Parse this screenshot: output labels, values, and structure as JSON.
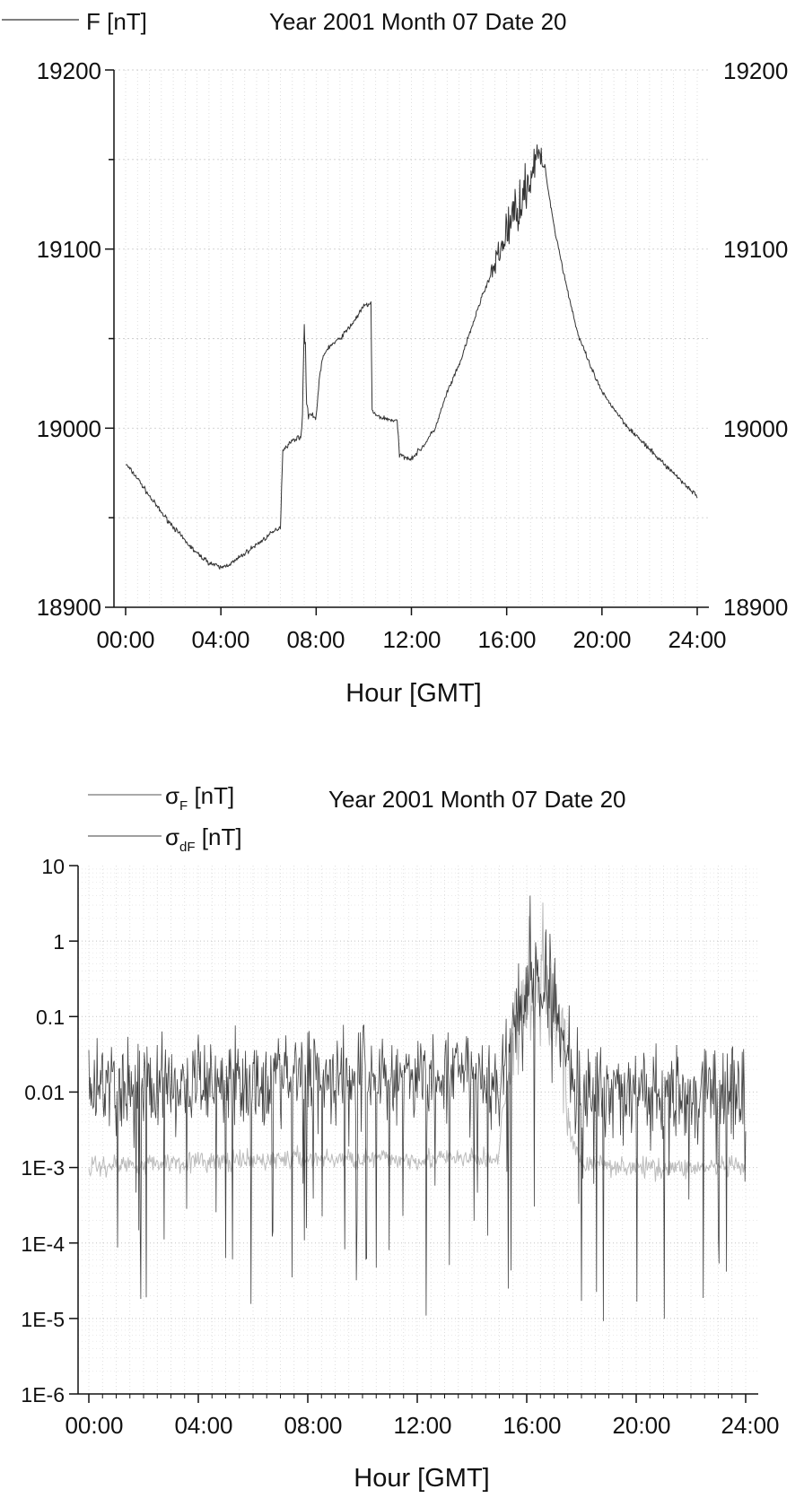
{
  "chart_data": [
    {
      "type": "line",
      "title": "Year 2001 Month 07 Date 20",
      "xlabel": "Hour [GMT]",
      "ylabel": "",
      "legend": [
        "F [nT]"
      ],
      "legend_position": "top-left",
      "grid": true,
      "xlim": [
        0,
        24
      ],
      "ylim": [
        18900,
        19200
      ],
      "x_ticks": [
        "00:00",
        "04:00",
        "08:00",
        "12:00",
        "16:00",
        "20:00",
        "24:00"
      ],
      "y_ticks": [
        "18900",
        "19000",
        "19100",
        "19200"
      ],
      "y_ticks_right": [
        "18900",
        "19000",
        "19100",
        "19200"
      ],
      "series": [
        {
          "name": "F [nT]",
          "color": "#333333",
          "x": [
            0.0,
            0.5,
            1.0,
            1.5,
            2.0,
            2.5,
            3.0,
            3.5,
            4.0,
            4.5,
            5.0,
            5.5,
            6.0,
            6.5,
            6.6,
            7.0,
            7.4,
            7.5,
            7.55,
            7.6,
            7.7,
            8.0,
            8.15,
            8.3,
            8.5,
            9.0,
            9.5,
            10.0,
            10.3,
            10.35,
            10.5,
            11.0,
            11.4,
            11.5,
            12.0,
            12.5,
            13.0,
            13.5,
            14.0,
            14.5,
            15.0,
            15.5,
            16.0,
            16.5,
            17.0,
            17.2,
            17.4,
            17.6,
            18.0,
            18.5,
            19.0,
            19.5,
            20.0,
            21.0,
            22.0,
            23.0,
            24.0
          ],
          "y": [
            18980,
            18972,
            18962,
            18953,
            18945,
            18937,
            18930,
            18925,
            18922,
            18925,
            18930,
            18935,
            18940,
            18945,
            18988,
            18993,
            18996,
            19055,
            19050,
            19012,
            19008,
            19006,
            19030,
            19040,
            19045,
            19050,
            19058,
            19068,
            19070,
            19010,
            19007,
            19005,
            19004,
            18985,
            18983,
            18990,
            19000,
            19020,
            19035,
            19055,
            19075,
            19090,
            19110,
            19125,
            19140,
            19150,
            19152,
            19145,
            19112,
            19080,
            19052,
            19035,
            19020,
            19002,
            18988,
            18975,
            18962
          ]
        }
      ]
    },
    {
      "type": "line",
      "title": "Year 2001 Month 07 Date 20",
      "xlabel": "Hour [GMT]",
      "ylabel": "",
      "legend": [
        "σF [nT]",
        "σdF [nT]"
      ],
      "legend_position": "top-left",
      "grid": true,
      "y_scale": "log",
      "xlim": [
        0,
        24
      ],
      "ylim": [
        1e-06,
        10
      ],
      "x_ticks": [
        "00:00",
        "04:00",
        "08:00",
        "12:00",
        "16:00",
        "20:00",
        "24:00"
      ],
      "y_ticks": [
        "1E-6",
        "1E-5",
        "1E-4",
        "1E-3",
        "0.01",
        "0.1",
        "1",
        "10"
      ],
      "series": [
        {
          "name": "σF [nT]",
          "color": "#bbbbbb",
          "x": [
            0,
            1,
            2,
            3,
            4,
            5,
            6,
            7,
            8,
            9,
            10,
            11,
            12,
            13,
            14,
            15,
            15.5,
            16.0,
            16.5,
            17.0,
            17.5,
            18,
            19,
            20,
            21,
            22,
            23,
            24
          ],
          "y": [
            0.001,
            0.0011,
            0.0011,
            0.0012,
            0.0012,
            0.0012,
            0.0012,
            0.0013,
            0.0013,
            0.0013,
            0.0013,
            0.0013,
            0.0013,
            0.0013,
            0.0013,
            0.0013,
            0.02,
            0.15,
            0.3,
            0.1,
            0.003,
            0.0011,
            0.0011,
            0.001,
            0.001,
            0.001,
            0.001,
            0.001
          ]
        },
        {
          "name": "σdF [nT]",
          "color": "#222222",
          "x": [
            0,
            1,
            2,
            3,
            4,
            5,
            6,
            7,
            8,
            9,
            10,
            11,
            12,
            13,
            14,
            15,
            15.5,
            16.0,
            16.5,
            17.0,
            17.5,
            18,
            19,
            20,
            21,
            22,
            23,
            24
          ],
          "y": [
            0.01,
            0.012,
            0.012,
            0.013,
            0.014,
            0.015,
            0.015,
            0.016,
            0.017,
            0.016,
            0.017,
            0.015,
            0.014,
            0.016,
            0.015,
            0.013,
            0.05,
            0.2,
            0.35,
            0.15,
            0.02,
            0.01,
            0.01,
            0.01,
            0.009,
            0.01,
            0.01,
            0.01
          ]
        }
      ]
    }
  ]
}
